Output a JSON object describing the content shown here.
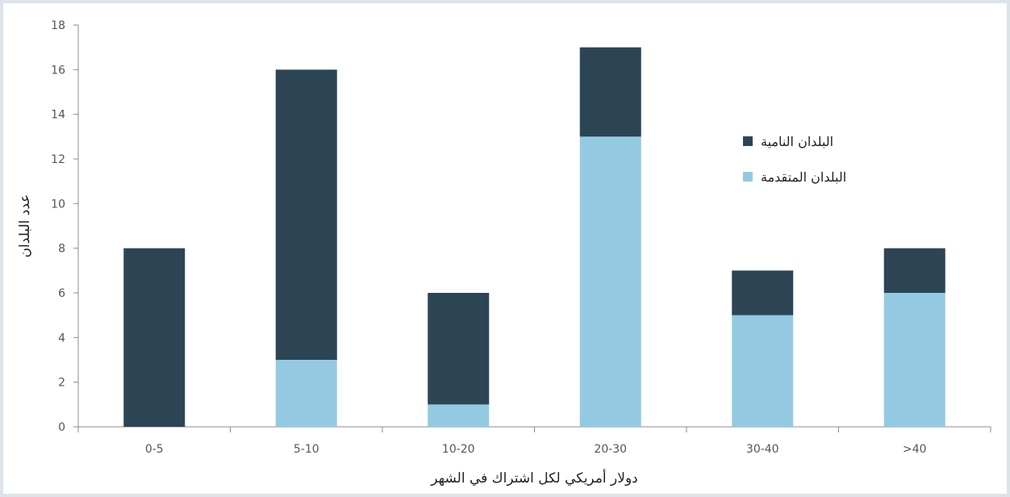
{
  "chart_data": {
    "type": "bar",
    "stacked": true,
    "categories": [
      "0-5",
      "5-10",
      "10-20",
      "20-30",
      "30-40",
      ">40"
    ],
    "series": [
      {
        "name": "البلدان المتقدمة",
        "color": "#93cae1",
        "values": [
          0,
          3,
          1,
          13,
          5,
          6
        ]
      },
      {
        "name": "البلدان النامية",
        "color": "#2c4555",
        "values": [
          8,
          13,
          5,
          4,
          2,
          2
        ]
      }
    ],
    "xlabel": "دولار أمريكي لكل اشتراك في الشهر",
    "ylabel": "عدد البلدان",
    "ylim": [
      0,
      18
    ],
    "yticks": [
      0,
      2,
      4,
      6,
      8,
      10,
      12,
      14,
      16,
      18
    ],
    "grid": false,
    "legend_position": "right"
  }
}
